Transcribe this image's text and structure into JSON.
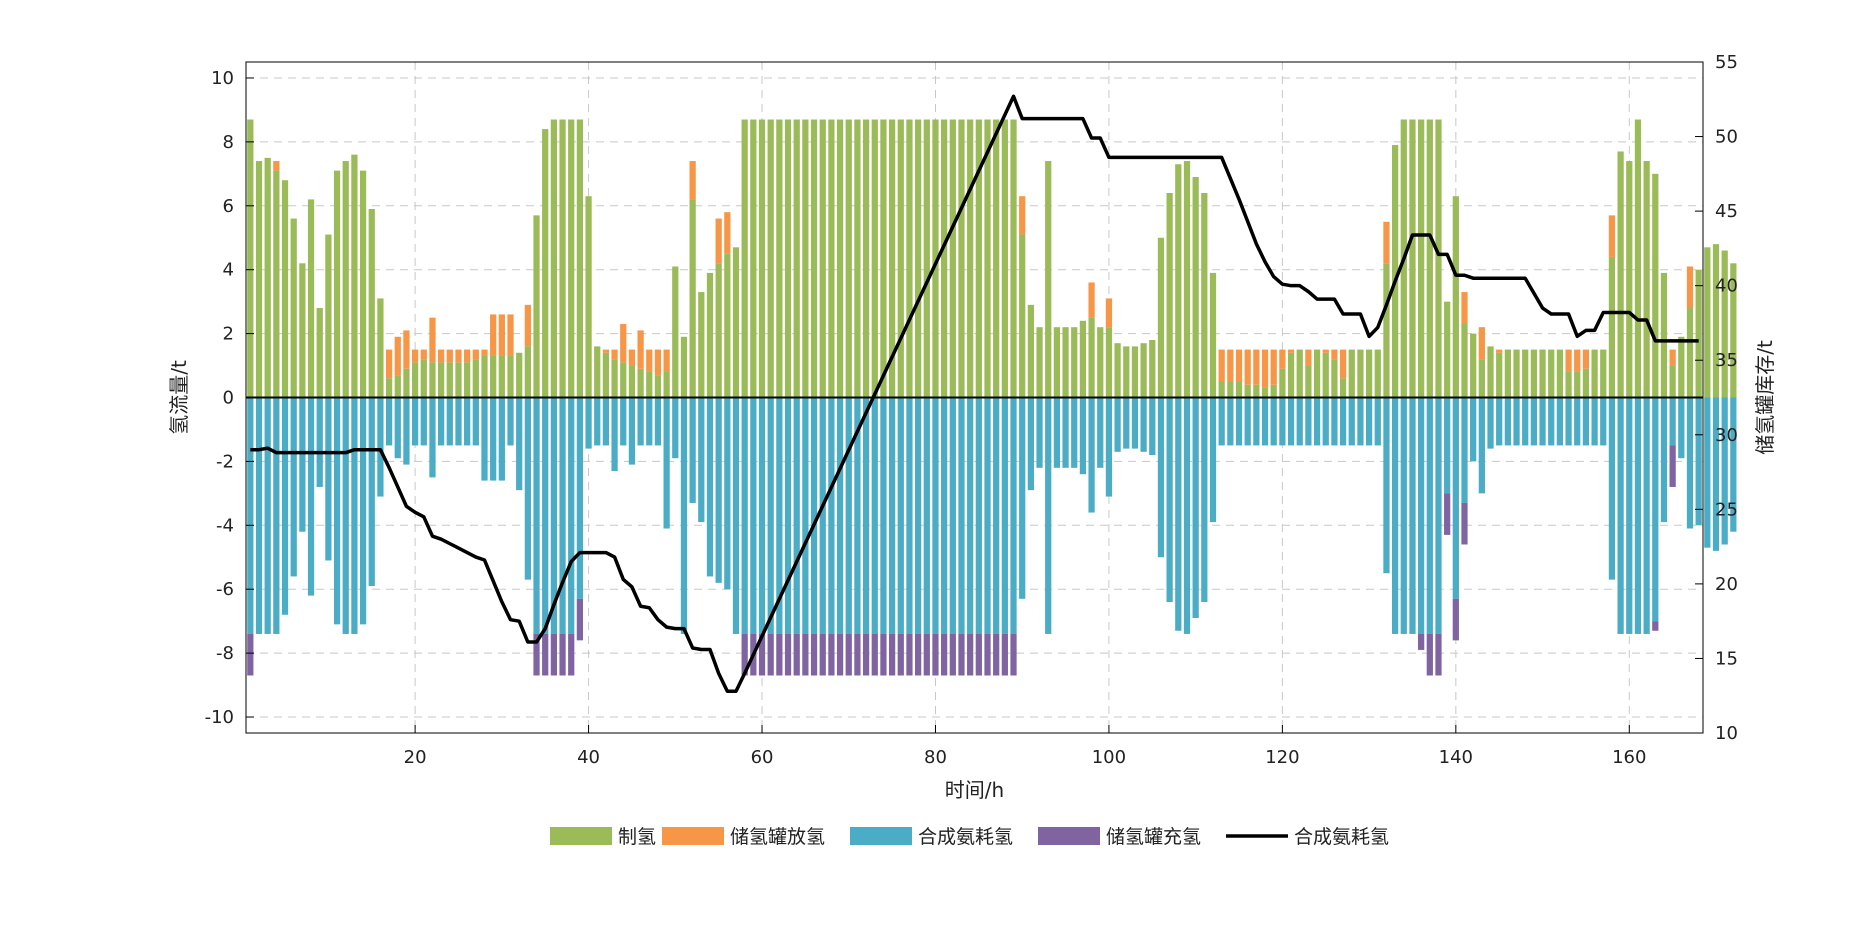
{
  "chart_data": {
    "type": "bar",
    "title": "",
    "xlabel": "时间/h",
    "ylabel": "氢流量/t",
    "y2label": "储氢罐库存/t",
    "xlim": [
      1,
      168
    ],
    "ylim": [
      -10.5,
      10.5
    ],
    "y2lim": [
      10,
      55
    ],
    "x_ticks": [
      20,
      40,
      60,
      80,
      100,
      120,
      140,
      160
    ],
    "y_ticks": [
      -10,
      -8,
      -6,
      -4,
      -2,
      0,
      2,
      4,
      6,
      8,
      10
    ],
    "y2_ticks": [
      10,
      15,
      20,
      25,
      30,
      35,
      40,
      45,
      50,
      55
    ],
    "grid": true,
    "legend_position": "bottom",
    "colors": {
      "production": "#9bbb59",
      "tank_discharge": "#f79646",
      "synthesis_use": "#4bacc6",
      "tank_charge": "#8064a2",
      "inventory": "#000000"
    },
    "series": [
      {
        "name": "制氢",
        "type": "bar",
        "color": "#9bbb59",
        "values": [
          8.7,
          7.4,
          7.5,
          7.1,
          6.8,
          5.6,
          4.2,
          6.2,
          2.8,
          5.1,
          7.1,
          7.4,
          7.6,
          7.1,
          5.9,
          3.1,
          0.6,
          0.7,
          0.9,
          1.1,
          1.2,
          1.1,
          1.1,
          1.1,
          1.1,
          1.1,
          1.2,
          1.3,
          1.3,
          1.3,
          1.3,
          1.4,
          1.6,
          5.7,
          8.4,
          8.7,
          8.7,
          8.7,
          8.7,
          6.3,
          1.6,
          1.4,
          1.2,
          1.1,
          1.0,
          0.9,
          0.8,
          0.7,
          0.8,
          4.1,
          1.9,
          6.2,
          3.3,
          3.9,
          4.2,
          4.5,
          4.7,
          8.7,
          8.7,
          8.7,
          8.7,
          8.7,
          8.7,
          8.7,
          8.7,
          8.7,
          8.7,
          8.7,
          8.7,
          8.7,
          8.7,
          8.7,
          8.7,
          8.7,
          8.7,
          8.7,
          8.7,
          8.7,
          8.7,
          8.7,
          8.7,
          8.7,
          8.7,
          8.7,
          8.7,
          8.7,
          8.7,
          8.7,
          8.7,
          5.1,
          2.9,
          2.2,
          7.4,
          2.2,
          2.2,
          2.2,
          2.4,
          2.5,
          2.2,
          2.2,
          1.7,
          1.6,
          1.6,
          1.7,
          1.8,
          5.0,
          6.4,
          7.3,
          7.4,
          6.9,
          6.4,
          3.9,
          0.5,
          0.5,
          0.5,
          0.4,
          0.4,
          0.3,
          0.4,
          0.9,
          1.4,
          1.5,
          1.0,
          1.5,
          1.4,
          1.2,
          0.6,
          1.5,
          1.5,
          1.5,
          1.5,
          4.2,
          7.9,
          8.7,
          8.7,
          8.7,
          8.7,
          8.7,
          3.0,
          6.3,
          2.3,
          2.0,
          1.2,
          1.6,
          1.4,
          1.5,
          1.5,
          1.5,
          1.5,
          1.5,
          1.5,
          1.5,
          0.8,
          0.8,
          0.9,
          1.5,
          1.5,
          4.4,
          7.7,
          7.4,
          8.7,
          7.4,
          7.0,
          3.9,
          1.0,
          1.9,
          2.8,
          4.0,
          4.7,
          4.8,
          4.6,
          4.2
        ]
      },
      {
        "name": "储氢罐放氢",
        "type": "bar",
        "color": "#f79646",
        "values": [
          0,
          0,
          0,
          0.3,
          0,
          0,
          0,
          0,
          0,
          0,
          0,
          0,
          0,
          0,
          0,
          0,
          0.9,
          1.2,
          1.2,
          0.4,
          0.3,
          1.4,
          0.4,
          0.4,
          0.4,
          0.4,
          0.3,
          0.2,
          1.3,
          1.3,
          1.3,
          0,
          1.3,
          0,
          0,
          0,
          0,
          0,
          0,
          0,
          0,
          0.1,
          0.3,
          1.2,
          0.5,
          1.2,
          0.7,
          0.8,
          0.7,
          0,
          0,
          1.2,
          0,
          0,
          1.4,
          1.3,
          0,
          0,
          0,
          0,
          0,
          0,
          0,
          0,
          0,
          0,
          0,
          0,
          0,
          0,
          0,
          0,
          0,
          0,
          0,
          0,
          0,
          0,
          0,
          0,
          0,
          0,
          0,
          0,
          0,
          0,
          0,
          0,
          0,
          1.2,
          0,
          0,
          0,
          0,
          0,
          0,
          0,
          1.1,
          0,
          0.9,
          0,
          0,
          0,
          0,
          0,
          0,
          0,
          0,
          0,
          0,
          0,
          0,
          1.0,
          1.0,
          1.0,
          1.1,
          1.1,
          1.2,
          1.1,
          0.6,
          0.1,
          0,
          0.5,
          0,
          0.1,
          0.3,
          0.9,
          0,
          0,
          0,
          0,
          1.3,
          0,
          0,
          0,
          0,
          0,
          0,
          0,
          0,
          1.0,
          0,
          1.0,
          0,
          0.1,
          0,
          0,
          0,
          0,
          0,
          0,
          0,
          0.7,
          0.7,
          0.6,
          0,
          0,
          1.3,
          0,
          0,
          0,
          0,
          0,
          0,
          0.5,
          0,
          1.3,
          0,
          0,
          0,
          0,
          0
        ]
      },
      {
        "name": "合成氨耗氢",
        "type": "bar",
        "color": "#4bacc6",
        "values": [
          -7.4,
          -7.4,
          -7.4,
          -7.4,
          -6.8,
          -5.6,
          -4.2,
          -6.2,
          -2.8,
          -5.1,
          -7.1,
          -7.4,
          -7.4,
          -7.1,
          -5.9,
          -3.1,
          -1.5,
          -1.9,
          -2.1,
          -1.5,
          -1.5,
          -2.5,
          -1.5,
          -1.5,
          -1.5,
          -1.5,
          -1.5,
          -2.6,
          -2.6,
          -2.6,
          -1.5,
          -2.9,
          -5.7,
          -7.4,
          -7.4,
          -7.4,
          -7.4,
          -7.4,
          -6.3,
          -1.6,
          -1.5,
          -1.5,
          -2.3,
          -1.5,
          -2.1,
          -1.5,
          -1.5,
          -1.5,
          -4.1,
          -1.9,
          -7.4,
          -3.3,
          -3.9,
          -5.6,
          -5.8,
          -6.0,
          -7.4,
          -7.4,
          -7.4,
          -7.4,
          -7.4,
          -7.4,
          -7.4,
          -7.4,
          -7.4,
          -7.4,
          -7.4,
          -7.4,
          -7.4,
          -7.4,
          -7.4,
          -7.4,
          -7.4,
          -7.4,
          -7.4,
          -7.4,
          -7.4,
          -7.4,
          -7.4,
          -7.4,
          -7.4,
          -7.4,
          -7.4,
          -7.4,
          -7.4,
          -7.4,
          -7.4,
          -7.4,
          -7.4,
          -6.3,
          -2.9,
          -2.2,
          -7.4,
          -2.2,
          -2.2,
          -2.2,
          -2.4,
          -3.6,
          -2.2,
          -3.1,
          -1.7,
          -1.6,
          -1.6,
          -1.7,
          -1.8,
          -5.0,
          -6.4,
          -7.3,
          -7.4,
          -6.9,
          -6.4,
          -3.9,
          -1.5,
          -1.5,
          -1.5,
          -1.5,
          -1.5,
          -1.5,
          -1.5,
          -1.5,
          -1.5,
          -1.5,
          -1.5,
          -1.5,
          -1.5,
          -1.5,
          -1.5,
          -1.5,
          -1.5,
          -1.5,
          -1.5,
          -5.5,
          -7.4,
          -7.4,
          -7.4,
          -7.4,
          -7.4,
          -7.4,
          -3.0,
          -6.3,
          -3.3,
          -2.0,
          -3.0,
          -1.6,
          -1.5,
          -1.5,
          -1.5,
          -1.5,
          -1.5,
          -1.5,
          -1.5,
          -1.5,
          -1.5,
          -1.5,
          -1.5,
          -1.5,
          -1.5,
          -5.7,
          -7.4,
          -7.4,
          -7.4,
          -7.4,
          -7.0,
          -3.9,
          -1.5,
          -1.9,
          -4.1,
          -4.0,
          -4.7,
          -4.8,
          -4.6,
          -4.2
        ]
      },
      {
        "name": "储氢罐充氢",
        "type": "bar",
        "color": "#8064a2",
        "values": [
          -1.3,
          0,
          0,
          0,
          0,
          0,
          0,
          0,
          0,
          0,
          0,
          0,
          0,
          0,
          0,
          0,
          0,
          0,
          0,
          0,
          0,
          0,
          0,
          0,
          0,
          0,
          0,
          0,
          0,
          0,
          0,
          0,
          0,
          -1.3,
          -1.3,
          -1.3,
          -1.3,
          -1.3,
          -1.3,
          0,
          0,
          0,
          0,
          0,
          0,
          0,
          0,
          0,
          0,
          0,
          0,
          0,
          0,
          0,
          0,
          0,
          0,
          -1.3,
          -1.3,
          -1.3,
          -1.3,
          -1.3,
          -1.3,
          -1.3,
          -1.3,
          -1.3,
          -1.3,
          -1.3,
          -1.3,
          -1.3,
          -1.3,
          -1.3,
          -1.3,
          -1.3,
          -1.3,
          -1.3,
          -1.3,
          -1.3,
          -1.3,
          -1.3,
          -1.3,
          -1.3,
          -1.3,
          -1.3,
          -1.3,
          -1.3,
          -1.3,
          -1.3,
          -1.3,
          0,
          0,
          0,
          0,
          0,
          0,
          0,
          0,
          0,
          0,
          0,
          0,
          0,
          0,
          0,
          0,
          0,
          0,
          0,
          0,
          0,
          0,
          0,
          0,
          0,
          0,
          0,
          0,
          0,
          0,
          0,
          0,
          0,
          0,
          0,
          0,
          0,
          0,
          0,
          0,
          0,
          0,
          0,
          0,
          0,
          0,
          -0.5,
          -1.3,
          -1.3,
          -1.3,
          -1.3,
          -1.3,
          0,
          0,
          0,
          0,
          0,
          0,
          0,
          0,
          0,
          0,
          0,
          0,
          0,
          0,
          0,
          0,
          0,
          0,
          0,
          0,
          0,
          -0.3,
          0,
          -1.3,
          0,
          0,
          0,
          0,
          0,
          0,
          0,
          0,
          0,
          0,
          0,
          0
        ]
      },
      {
        "name": "合成氨耗氢",
        "type": "line",
        "axis": "right",
        "color": "#000000",
        "x": [
          1,
          2,
          3,
          4,
          5,
          6,
          7,
          8,
          9,
          10,
          11,
          12,
          13,
          14,
          15,
          16,
          17,
          18,
          19,
          20,
          21,
          22,
          23,
          24,
          25,
          26,
          27,
          28,
          29,
          30,
          31,
          32,
          33,
          34,
          35,
          36,
          37,
          38,
          39,
          40,
          41,
          42,
          43,
          44,
          45,
          46,
          47,
          48,
          49,
          50,
          51,
          52,
          53,
          54,
          55,
          56,
          57,
          58,
          89,
          90,
          91,
          92,
          93,
          94,
          95,
          96,
          97,
          98,
          99,
          100,
          101,
          102,
          103,
          104,
          105,
          106,
          107,
          108,
          109,
          110,
          111,
          112,
          113,
          114,
          115,
          116,
          117,
          118,
          119,
          120,
          121,
          122,
          123,
          124,
          125,
          126,
          127,
          128,
          129,
          130,
          131,
          132,
          133,
          134,
          135,
          136,
          137,
          138,
          139,
          140,
          141,
          142,
          143,
          144,
          145,
          146,
          147,
          148,
          149,
          150,
          151,
          152,
          153,
          154,
          155,
          156,
          157,
          158,
          159,
          160,
          161,
          162,
          163,
          164,
          165,
          166,
          167,
          168
        ],
        "values": [
          29.0,
          29.0,
          29.1,
          28.8,
          28.8,
          28.8,
          28.8,
          28.8,
          28.8,
          28.8,
          28.8,
          28.8,
          29.0,
          29.0,
          29.0,
          29.0,
          27.8,
          26.5,
          25.2,
          24.8,
          24.5,
          23.2,
          23.0,
          22.7,
          22.4,
          22.1,
          21.8,
          21.6,
          20.2,
          18.8,
          17.6,
          17.5,
          16.1,
          16.1,
          17.0,
          18.6,
          20.1,
          21.5,
          22.1,
          22.1,
          22.1,
          22.1,
          21.8,
          20.3,
          19.8,
          18.5,
          18.4,
          17.6,
          17.1,
          17.0,
          17.0,
          15.7,
          15.6,
          15.6,
          14.0,
          12.8,
          12.8,
          14.0,
          52.7,
          51.2,
          51.2,
          51.2,
          51.2,
          51.2,
          51.2,
          51.2,
          51.2,
          49.9,
          49.9,
          48.6,
          48.6,
          48.6,
          48.6,
          48.6,
          48.6,
          48.6,
          48.6,
          48.6,
          48.6,
          48.6,
          48.6,
          48.6,
          48.6,
          47.2,
          45.8,
          44.3,
          42.8,
          41.6,
          40.6,
          40.1,
          40.0,
          40.0,
          39.6,
          39.1,
          39.1,
          39.1,
          38.1,
          38.1,
          38.1,
          36.6,
          37.2,
          38.7,
          40.3,
          41.8,
          43.4,
          43.4,
          43.4,
          42.1,
          42.1,
          40.7,
          40.7,
          40.5,
          40.5,
          40.5,
          40.5,
          40.5,
          40.5,
          40.5,
          39.5,
          38.5,
          38.1,
          38.1,
          38.1,
          36.6,
          37.0,
          37.0,
          38.2,
          38.2,
          38.2,
          38.2,
          37.7,
          37.7,
          36.3,
          36.3,
          36.3,
          36.3,
          36.3,
          36.3
        ]
      }
    ],
    "legend": [
      "制氢",
      "储氢罐放氢",
      "合成氨耗氢",
      "储氢罐充氢",
      "合成氨耗氢"
    ]
  }
}
